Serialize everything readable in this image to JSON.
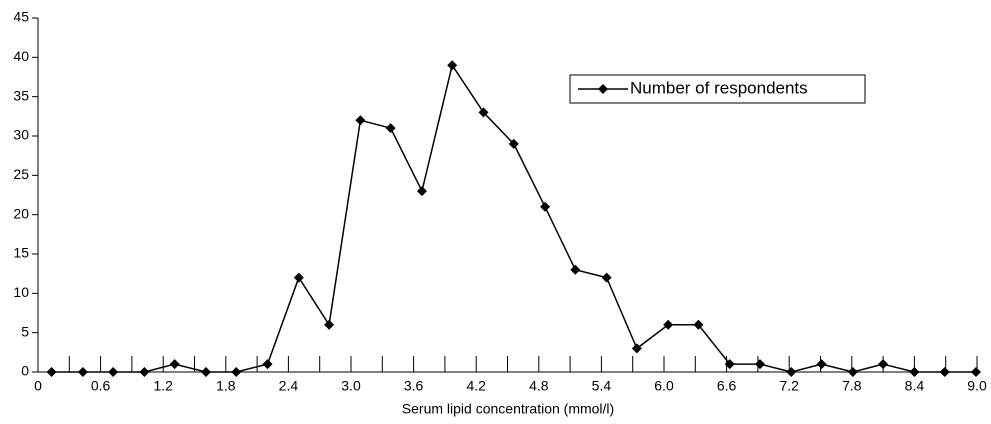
{
  "chart_data": {
    "type": "line",
    "x_label": "Serum lipid concentration (mmol/l)",
    "xlim": [
      0,
      9
    ],
    "xticks": [
      0,
      {
        "value": 0.3,
        "label": null
      },
      0.6,
      {
        "value": 0.9,
        "label": null
      },
      1.2,
      {
        "value": 1.5,
        "label": null
      },
      1.8,
      {
        "value": 2.1,
        "label": null
      },
      2.4,
      {
        "value": 2.7,
        "label": null
      },
      {
        "value": 3,
        "label": "3.0"
      },
      {
        "value": 3.3,
        "label": null
      },
      3.6,
      {
        "value": 3.9,
        "label": null
      },
      4.2,
      {
        "value": 4.5,
        "label": null
      },
      4.8,
      {
        "value": 5.1,
        "label": null
      },
      5.4,
      {
        "value": 5.7,
        "label": null
      },
      {
        "value": 6,
        "label": "6.0"
      },
      {
        "value": 6.3,
        "label": null
      },
      6.6,
      {
        "value": 6.9,
        "label": null
      },
      7.2,
      {
        "value": 7.5,
        "label": null
      },
      7.8,
      {
        "value": 8.1,
        "label": null
      },
      8.4,
      {
        "value": 8.7,
        "label": null
      },
      {
        "value": 9,
        "label": "9.0"
      }
    ],
    "ylim": [
      0,
      45
    ],
    "yticks": [
      0,
      5,
      10,
      15,
      20,
      25,
      30,
      35,
      40,
      45
    ],
    "x": [
      0.13,
      0.43,
      0.72,
      1.02,
      1.31,
      1.61,
      1.9,
      2.2,
      2.5,
      2.79,
      3.09,
      3.38,
      3.68,
      3.97,
      4.27,
      4.56,
      4.86,
      5.15,
      5.45,
      5.74,
      6.04,
      6.33,
      6.63,
      6.92,
      7.22,
      7.51,
      7.81,
      8.1,
      8.4,
      8.69,
      8.99
    ],
    "series": [
      {
        "name": "Number of respondents",
        "color": "#000000",
        "values": [
          0,
          0,
          0,
          0,
          1,
          0,
          0,
          1,
          12,
          6,
          32,
          31,
          23,
          39,
          33,
          29,
          21,
          13,
          12,
          3,
          6,
          6,
          1,
          1,
          0,
          1,
          0,
          1,
          0,
          0,
          0
        ]
      }
    ],
    "legend": "upper right"
  }
}
